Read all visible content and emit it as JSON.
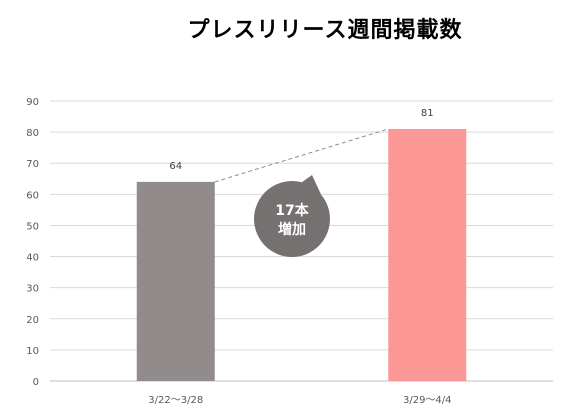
{
  "chart_data": {
    "type": "bar",
    "title": "プレスリリース週間掲載数",
    "categories": [
      "3/22〜3/28",
      "3/29〜4/4"
    ],
    "values": [
      64,
      81
    ],
    "bar_colors": [
      "#918b8b",
      "#fb9895"
    ],
    "ylim": [
      0,
      90
    ],
    "yticks": [
      0,
      10,
      20,
      30,
      40,
      50,
      60,
      70,
      80,
      90
    ],
    "grid": true,
    "annotation": {
      "lines": [
        "17本",
        "増加"
      ],
      "color": "#767171"
    }
  }
}
